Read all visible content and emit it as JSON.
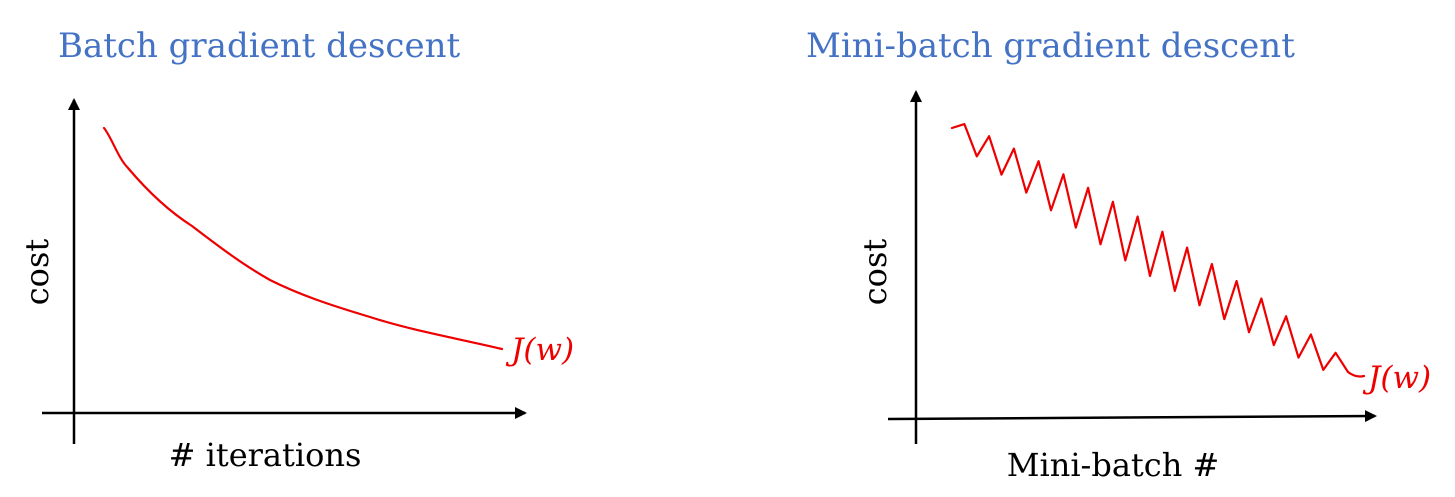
{
  "panels": [
    {
      "title": "Batch gradient descent",
      "ylabel": "cost",
      "xlabel": "# iterations",
      "curve_label": "J(w)"
    },
    {
      "title": "Mini-batch gradient descent",
      "ylabel": "cost",
      "xlabel": "Mini-batch #",
      "curve_label": "J(w)"
    }
  ],
  "colors": {
    "title": "#4472c4",
    "curve": "#ee0000",
    "axes": "#000000"
  }
}
